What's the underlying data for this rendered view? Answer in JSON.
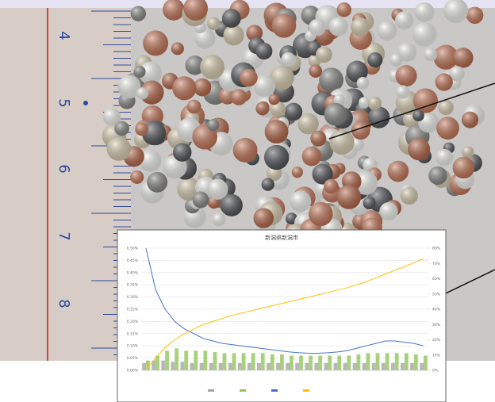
{
  "ruler": {
    "labels": [
      "4",
      "5",
      "6",
      "7",
      "8"
    ]
  },
  "chart_data": {
    "type": "combo",
    "title": "新潟県新潟市",
    "categories": [
      null,
      null,
      null,
      null,
      null,
      null,
      null,
      null,
      null,
      null,
      null,
      null,
      null,
      null,
      null,
      null,
      null,
      null,
      null,
      null,
      null,
      null,
      null,
      null,
      null,
      null,
      null,
      null,
      null,
      null
    ],
    "ylim": [
      0,
      0.5
    ],
    "yticks": [
      {
        "value": 0,
        "label": "0.00%"
      },
      {
        "value": 0.05,
        "label": "0.05%"
      },
      {
        "value": 0.1,
        "label": "0.10%"
      },
      {
        "value": 0.15,
        "label": "0.15%"
      },
      {
        "value": 0.2,
        "label": "0.20%"
      },
      {
        "value": 0.25,
        "label": "0.25%"
      },
      {
        "value": 0.3,
        "label": "0.30%"
      },
      {
        "value": 0.35,
        "label": "0.35%"
      },
      {
        "value": 0.4,
        "label": "0.40%"
      },
      {
        "value": 0.45,
        "label": "0.45%"
      },
      {
        "value": 0.5,
        "label": "0.50%"
      }
    ],
    "y2lim": [
      0,
      80
    ],
    "y2ticks": [
      {
        "value": 0,
        "label": "0%"
      },
      {
        "value": 10,
        "label": "10%"
      },
      {
        "value": 20,
        "label": "20%"
      },
      {
        "value": 30,
        "label": "30%"
      },
      {
        "value": 40,
        "label": "40%"
      },
      {
        "value": 50,
        "label": "50%"
      },
      {
        "value": 60,
        "label": "60%"
      },
      {
        "value": 70,
        "label": "70%"
      },
      {
        "value": 80,
        "label": "80%"
      }
    ],
    "grid": true,
    "series": [
      {
        "kind": "bar",
        "color": "#a5a5a5",
        "values": [
          0.03,
          0.04,
          0.04,
          0.035,
          0.035,
          0.03,
          0.03,
          0.03,
          0.03,
          0.03,
          0.03,
          0.03,
          0.03,
          0.03,
          0.03,
          0.03,
          0.03,
          0.03,
          0.03,
          0.03,
          0.03,
          0.03,
          0.03,
          0.03,
          0.03,
          0.03,
          0.03,
          0.03,
          0.03,
          0.03
        ]
      },
      {
        "kind": "bar",
        "color": "#92c45c",
        "values": [
          0.04,
          0.06,
          0.08,
          0.09,
          0.08,
          0.08,
          0.08,
          0.075,
          0.07,
          0.07,
          0.07,
          0.07,
          0.07,
          0.065,
          0.065,
          0.06,
          0.06,
          0.06,
          0.06,
          0.06,
          0.06,
          0.06,
          0.065,
          0.07,
          0.07,
          0.07,
          0.07,
          0.07,
          0.065,
          0.06
        ]
      },
      {
        "kind": "line",
        "color": "#4472c4",
        "values": [
          0.5,
          0.33,
          0.25,
          0.2,
          0.17,
          0.15,
          0.13,
          0.12,
          0.11,
          0.105,
          0.1,
          0.095,
          0.09,
          0.085,
          0.08,
          0.075,
          0.072,
          0.07,
          0.07,
          0.072,
          0.075,
          0.08,
          0.09,
          0.1,
          0.11,
          0.12,
          0.12,
          0.115,
          0.11,
          0.1
        ]
      },
      {
        "kind": "line",
        "axis": "y2",
        "color": "#ffc000",
        "values": [
          0,
          8,
          15,
          20,
          24,
          27,
          30,
          32,
          34,
          36,
          37.5,
          39,
          40.5,
          42,
          43.5,
          45,
          46.5,
          48,
          49.5,
          51,
          52.5,
          54,
          56,
          58,
          60.5,
          63,
          65.5,
          68,
          70.5,
          73
        ]
      }
    ]
  }
}
